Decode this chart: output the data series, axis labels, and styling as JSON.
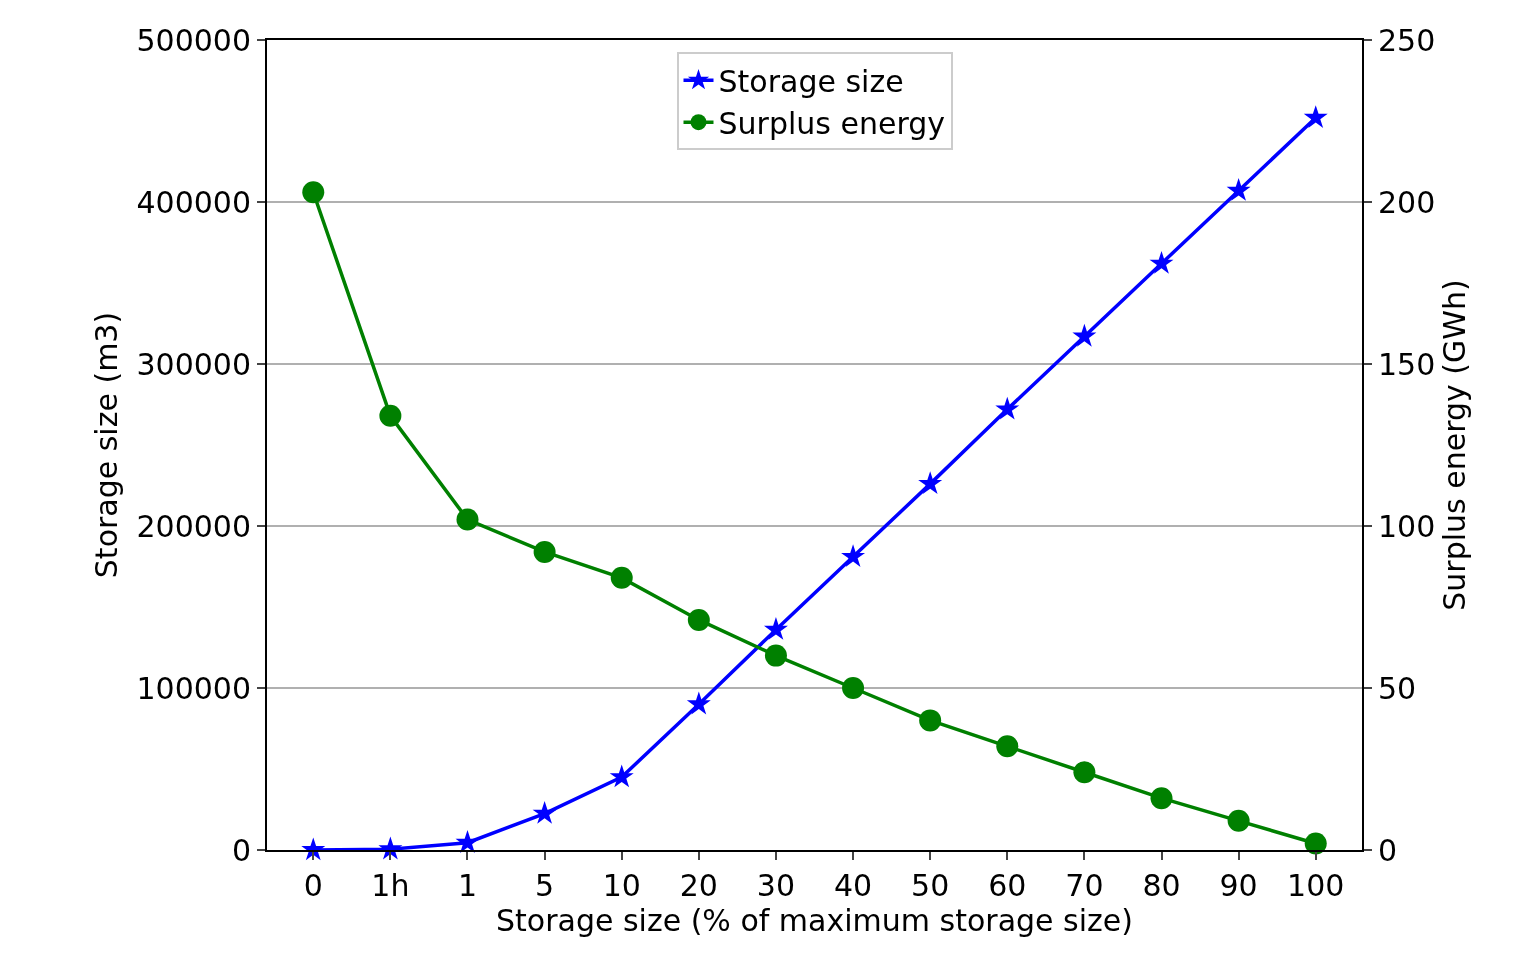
{
  "chart_data": {
    "type": "line",
    "xlabel": "Storage size (% of maximum storage size)",
    "ylabel": "Storage size (m3)",
    "y2label": "Surplus energy (GWh)",
    "categories": [
      "0",
      "1h",
      "1",
      "5",
      "10",
      "20",
      "30",
      "40",
      "50",
      "60",
      "70",
      "80",
      "90",
      "100"
    ],
    "series": [
      {
        "name": "Storage size",
        "color": "#0000ff",
        "marker": "star",
        "values": [
          0,
          500,
          4500,
          22500,
          45000,
          90000,
          136000,
          181000,
          226000,
          272000,
          317000,
          362000,
          407000,
          452000
        ]
      },
      {
        "name": "Surplus energy",
        "color": "#008000",
        "marker": "circle",
        "axis": "y2",
        "values": [
          203,
          134,
          102,
          92,
          84,
          71,
          60,
          50,
          40,
          32,
          24,
          16,
          9,
          2
        ]
      }
    ],
    "ylim": [
      0,
      500000
    ],
    "yticks": [
      0,
      100000,
      200000,
      300000,
      400000,
      500000
    ],
    "y2lim": [
      0,
      250
    ],
    "y2ticks": [
      0,
      50,
      100,
      150,
      200,
      250
    ],
    "grid": "y",
    "legend": "top",
    "line_style": "solid"
  }
}
